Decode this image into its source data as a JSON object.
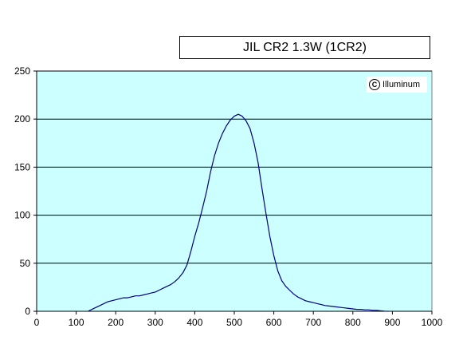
{
  "chart_data": {
    "type": "line",
    "title": "JIL CR2 1.3W (1CR2)",
    "xlabel": "",
    "ylabel": "",
    "xlim": [
      0,
      1000
    ],
    "ylim": [
      0,
      250
    ],
    "x_ticks": [
      0,
      100,
      200,
      300,
      400,
      500,
      600,
      700,
      800,
      900,
      1000
    ],
    "y_ticks": [
      0,
      50,
      100,
      150,
      200,
      250
    ],
    "grid": "horizontal",
    "plot_background": "#ccffff",
    "line_color": "#000080",
    "series": [
      {
        "x": [
          130,
          140,
          150,
          160,
          170,
          180,
          190,
          200,
          210,
          220,
          230,
          240,
          250,
          260,
          270,
          280,
          290,
          300,
          310,
          320,
          330,
          340,
          350,
          360,
          370,
          380,
          390,
          400,
          410,
          420,
          430,
          440,
          450,
          460,
          470,
          480,
          490,
          500,
          510,
          520,
          530,
          540,
          550,
          560,
          570,
          580,
          590,
          600,
          610,
          620,
          630,
          640,
          650,
          660,
          670,
          680,
          690,
          700,
          710,
          720,
          730,
          740,
          750,
          760,
          770,
          780,
          790,
          800,
          810,
          820,
          830,
          840,
          850,
          860,
          870,
          880,
          890
        ],
        "values": [
          0,
          2,
          4,
          6,
          8,
          10,
          11,
          12,
          13,
          14,
          14,
          15,
          16,
          16,
          17,
          18,
          19,
          20,
          22,
          24,
          26,
          28,
          31,
          35,
          40,
          48,
          62,
          78,
          92,
          108,
          125,
          145,
          162,
          175,
          185,
          193,
          199,
          203,
          205,
          203,
          198,
          190,
          175,
          155,
          128,
          102,
          78,
          58,
          42,
          32,
          26,
          22,
          18,
          15,
          13,
          11,
          10,
          9,
          8,
          7,
          6,
          5.5,
          5,
          4.5,
          4,
          3.5,
          3,
          2.5,
          2,
          2,
          1.5,
          1.5,
          1,
          1,
          0.5,
          0.2,
          0
        ]
      }
    ]
  },
  "watermark": {
    "symbol": "C",
    "text": "Illuminum"
  }
}
